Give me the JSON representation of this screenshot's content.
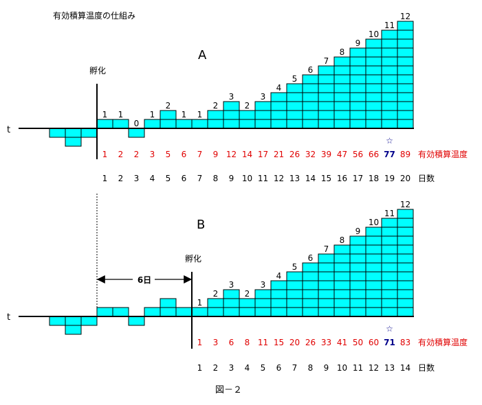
{
  "title": "有効積算温度の仕組み",
  "figure_caption": "図－２",
  "axis_t": "t",
  "label_hatch": "孵化",
  "label_sum": "有効積算温度",
  "label_days": "日数",
  "star": "☆",
  "colors": {
    "cell": "#00ffff",
    "line": "#000000",
    "red": "#e00000",
    "blue": "#00008b"
  },
  "panelA": {
    "name": "A",
    "pre_hatch": [
      -1,
      -2,
      -1
    ],
    "post_hatch": [
      1,
      1,
      0,
      1,
      2,
      1,
      1,
      2,
      3,
      2,
      3,
      4,
      5,
      6,
      7,
      8,
      9,
      10,
      11,
      12
    ],
    "post_labels": [
      "1",
      "1",
      "0",
      "1",
      "2",
      "1",
      "1",
      "2",
      "3",
      "2",
      "3",
      "4",
      "5",
      "6",
      "7",
      "8",
      "9",
      "10",
      "11",
      "12"
    ],
    "cumulative": [
      "1",
      "2",
      "2",
      "3",
      "5",
      "6",
      "7",
      "9",
      "12",
      "14",
      "17",
      "21",
      "26",
      "32",
      "39",
      "47",
      "56",
      "66",
      "77",
      "89"
    ],
    "days": [
      "1",
      "2",
      "3",
      "4",
      "5",
      "6",
      "7",
      "8",
      "9",
      "10",
      "11",
      "12",
      "13",
      "14",
      "15",
      "16",
      "17",
      "18",
      "19",
      "20"
    ],
    "highlight_index": 18
  },
  "panelB": {
    "name": "B",
    "pre_hatch": [
      -1,
      -2,
      -1,
      1,
      1,
      -1,
      1,
      2,
      1
    ],
    "post_hatch": [
      1,
      2,
      3,
      2,
      3,
      4,
      5,
      6,
      7,
      8,
      9,
      10,
      11,
      12
    ],
    "post_labels": [
      "1",
      "2",
      "3",
      "2",
      "3",
      "4",
      "5",
      "6",
      "7",
      "8",
      "9",
      "10",
      "11",
      "12"
    ],
    "cumulative": [
      "1",
      "3",
      "6",
      "8",
      "11",
      "15",
      "20",
      "26",
      "33",
      "41",
      "50",
      "60",
      "71",
      "83"
    ],
    "days": [
      "1",
      "2",
      "3",
      "4",
      "5",
      "6",
      "7",
      "8",
      "9",
      "10",
      "11",
      "12",
      "13",
      "14"
    ],
    "highlight_index": 12,
    "delay_label": "6日"
  }
}
